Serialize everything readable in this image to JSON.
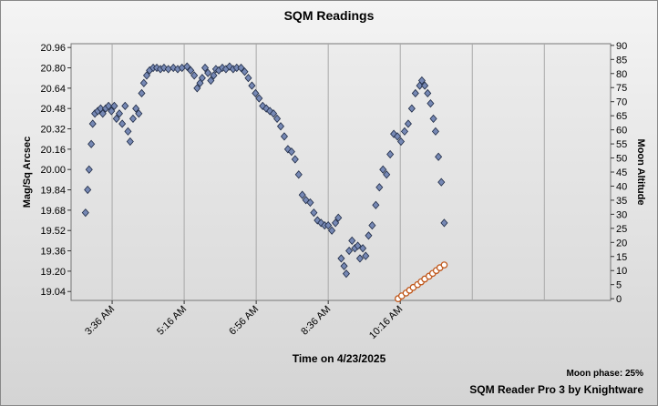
{
  "chart_data": {
    "type": "scatter",
    "title": "SQM Readings",
    "ylabel": "Mag/Sq Arcsec",
    "y2label": "Moon Altitude",
    "xlabel": "Time on 4/23/2025",
    "annotations": [
      "Moon phase: 25%",
      "SQM Reader Pro 3 by Knightware"
    ],
    "xlim": [
      159,
      908
    ],
    "xticks": [
      {
        "value": 216,
        "label": "3:36 AM"
      },
      {
        "value": 316,
        "label": "5:16 AM"
      },
      {
        "value": 416,
        "label": "6:56 AM"
      },
      {
        "value": 516,
        "label": "8:36 AM"
      },
      {
        "value": 616,
        "label": "10:16 AM"
      }
    ],
    "ylim": [
      18.97,
      20.99
    ],
    "yticks": [
      19.04,
      {
        "value": 19.2,
        "label": "19.20"
      },
      19.36,
      19.52,
      19.68,
      19.84,
      {
        "value": 20,
        "label": "20.00"
      },
      20.16,
      20.32,
      20.48,
      20.64,
      {
        "value": 20.8,
        "label": "20.80"
      },
      20.96
    ],
    "y2lim": [
      -0.6,
      90.6
    ],
    "y2ticks": [
      0,
      5,
      10,
      15,
      20,
      25,
      30,
      35,
      40,
      45,
      50,
      55,
      60,
      65,
      70,
      75,
      80,
      85,
      90
    ],
    "series": [
      {
        "color": "#7688b4",
        "x": [
          179,
          182,
          184,
          187,
          189,
          192,
          196,
          200,
          203,
          207,
          211,
          215,
          219,
          222,
          226,
          230,
          234,
          238,
          241,
          245,
          249,
          253,
          257,
          260,
          264,
          268,
          273,
          278,
          283,
          288,
          294,
          301,
          307,
          313,
          320,
          325,
          330,
          334,
          338,
          341,
          345,
          349,
          353,
          357,
          360,
          364,
          369,
          374,
          379,
          384,
          389,
          395,
          400,
          405,
          410,
          415,
          420,
          425,
          430,
          435,
          440,
          445,
          450,
          455,
          460,
          465,
          470,
          475,
          480,
          485,
          491,
          496,
          501,
          506,
          511,
          516,
          521,
          526,
          530,
          534,
          538,
          541,
          545,
          549,
          553,
          557,
          560,
          564,
          568,
          572,
          577,
          582,
          587,
          592,
          597,
          602,
          607,
          612,
          617,
          622,
          627,
          632,
          637,
          643,
          646,
          650,
          654,
          658,
          662,
          665,
          669,
          673,
          677
        ],
        "values": [
          19.66,
          19.84,
          20.0,
          20.2,
          20.36,
          20.44,
          20.46,
          20.48,
          20.44,
          20.48,
          20.5,
          20.46,
          20.5,
          20.4,
          20.44,
          20.36,
          20.5,
          20.3,
          20.22,
          20.4,
          20.48,
          20.44,
          20.6,
          20.68,
          20.74,
          20.78,
          20.8,
          20.8,
          20.79,
          20.8,
          20.79,
          20.8,
          20.79,
          20.8,
          20.81,
          20.78,
          20.74,
          20.64,
          20.68,
          20.72,
          20.8,
          20.76,
          20.7,
          20.74,
          20.79,
          20.78,
          20.8,
          20.79,
          20.81,
          20.79,
          20.8,
          20.8,
          20.77,
          20.72,
          20.66,
          20.6,
          20.56,
          20.5,
          20.48,
          20.46,
          20.44,
          20.4,
          20.34,
          20.26,
          20.16,
          20.14,
          20.08,
          19.96,
          19.8,
          19.76,
          19.74,
          19.66,
          19.6,
          19.58,
          19.56,
          19.56,
          19.52,
          19.58,
          19.62,
          19.3,
          19.24,
          19.18,
          19.36,
          19.44,
          19.38,
          19.4,
          19.3,
          19.38,
          19.32,
          19.48,
          19.56,
          19.72,
          19.86,
          20.0,
          19.96,
          20.12,
          20.28,
          20.26,
          20.22,
          20.3,
          20.36,
          20.48,
          20.6,
          20.66,
          20.7,
          20.66,
          20.6,
          20.52,
          20.4,
          20.3,
          20.1,
          19.9,
          19.58
        ]
      },
      {
        "color": "#c0581c",
        "axis": "y2",
        "x": [
          613,
          618,
          624,
          629,
          634,
          640,
          645,
          650,
          656,
          661,
          666,
          671,
          677
        ],
        "values": [
          0,
          1,
          2,
          3,
          4,
          5,
          6,
          7,
          8,
          9,
          10,
          11,
          12
        ]
      }
    ]
  }
}
